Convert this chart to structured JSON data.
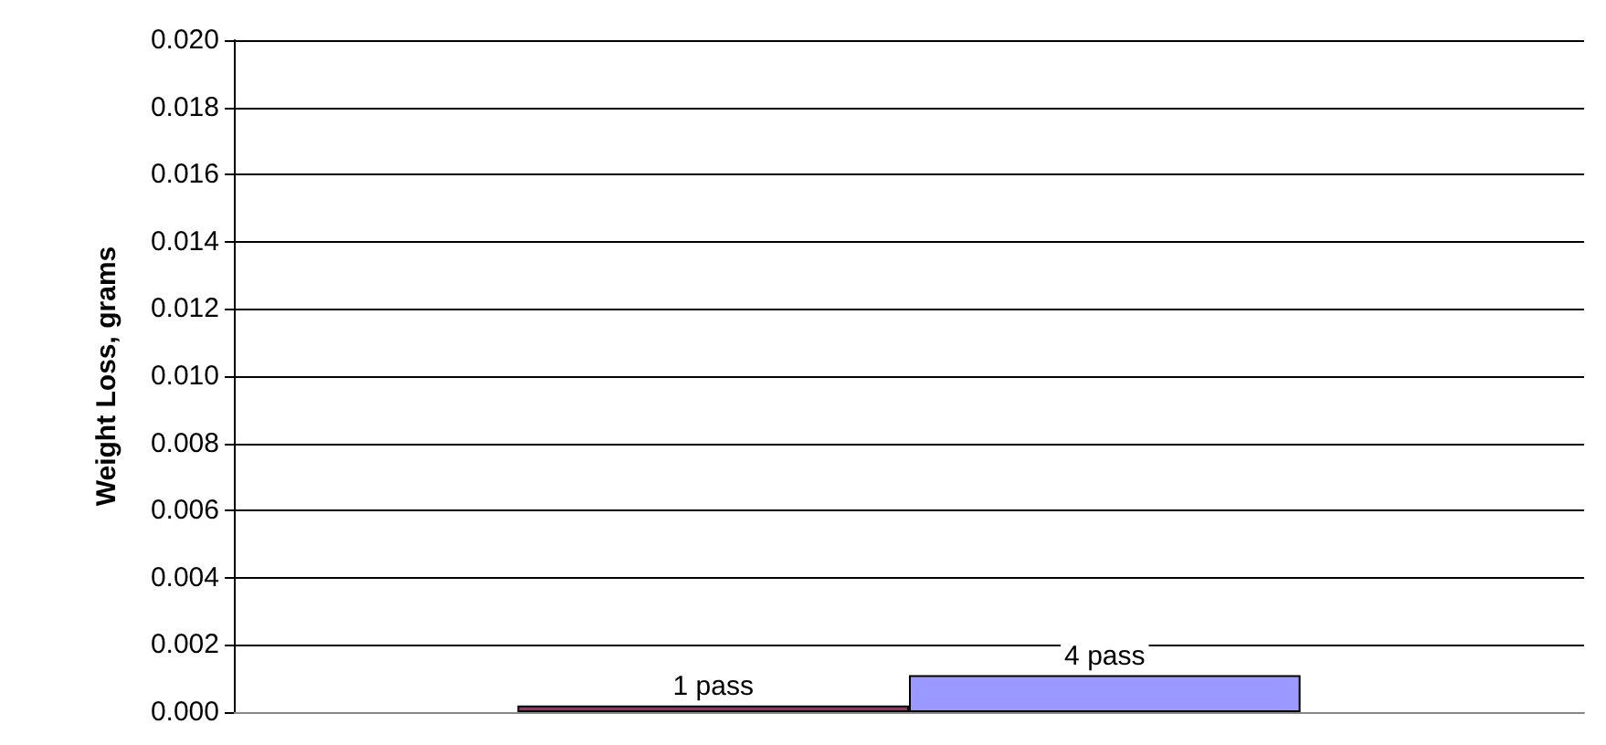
{
  "chart_data": {
    "type": "bar",
    "ylabel": "Weight Loss, grams",
    "categories": [
      null
    ],
    "series": [
      {
        "name": "1 pass",
        "color": "#993366",
        "values": [
          0.0002
        ]
      },
      {
        "name": "4 pass",
        "color": "#9999ff",
        "values": [
          0.0011
        ]
      }
    ],
    "ylim": [
      0,
      0.02
    ],
    "yticks": [
      {
        "value": 0,
        "label": "0.000"
      },
      {
        "value": 0.002,
        "label": "0.002"
      },
      {
        "value": 0.004,
        "label": "0.004"
      },
      {
        "value": 0.006,
        "label": "0.006"
      },
      {
        "value": 0.008,
        "label": "0.008"
      },
      {
        "value": 0.01,
        "label": "0.010"
      },
      {
        "value": 0.012,
        "label": "0.012"
      },
      {
        "value": 0.014,
        "label": "0.014"
      },
      {
        "value": 0.016,
        "label": "0.016"
      },
      {
        "value": 0.018,
        "label": "0.018"
      },
      {
        "value": 0.02,
        "label": "0.020"
      }
    ],
    "grid": "y",
    "legend": false
  }
}
